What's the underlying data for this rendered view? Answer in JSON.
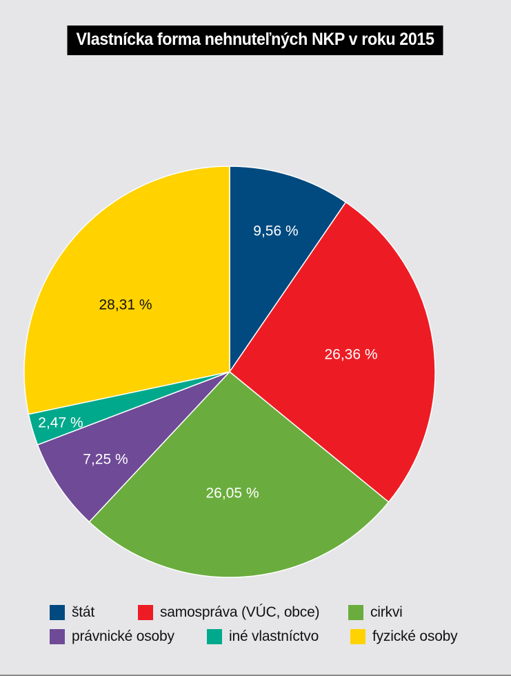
{
  "chart_data": {
    "type": "pie",
    "title": "Vlastnícka forma nehnuteľných NKP v roku 2015",
    "slices": [
      {
        "name": "štát",
        "value": 9.56,
        "label": "9,56 %",
        "color": "#004a80",
        "label_color": "#ffffff"
      },
      {
        "name": "samospráva (VÚC, obce)",
        "value": 26.36,
        "label": "26,36 %",
        "color": "#ed1c24",
        "label_color": "#ffffff"
      },
      {
        "name": "cirkvi",
        "value": 26.05,
        "label": "26,05 %",
        "color": "#6aad3e",
        "label_color": "#ffffff"
      },
      {
        "name": "právnické osoby",
        "value": 7.25,
        "label": "7,25 %",
        "color": "#6f4a97",
        "label_color": "#ffffff"
      },
      {
        "name": "iné vlastníctvo",
        "value": 2.47,
        "label": "2,47 %",
        "color": "#00a98c",
        "label_color": "#ffffff"
      },
      {
        "name": "fyzické osoby",
        "value": 28.31,
        "label": "28,31 %",
        "color": "#ffd200",
        "label_color": "#111111"
      }
    ],
    "legend_placement": "bottom"
  }
}
